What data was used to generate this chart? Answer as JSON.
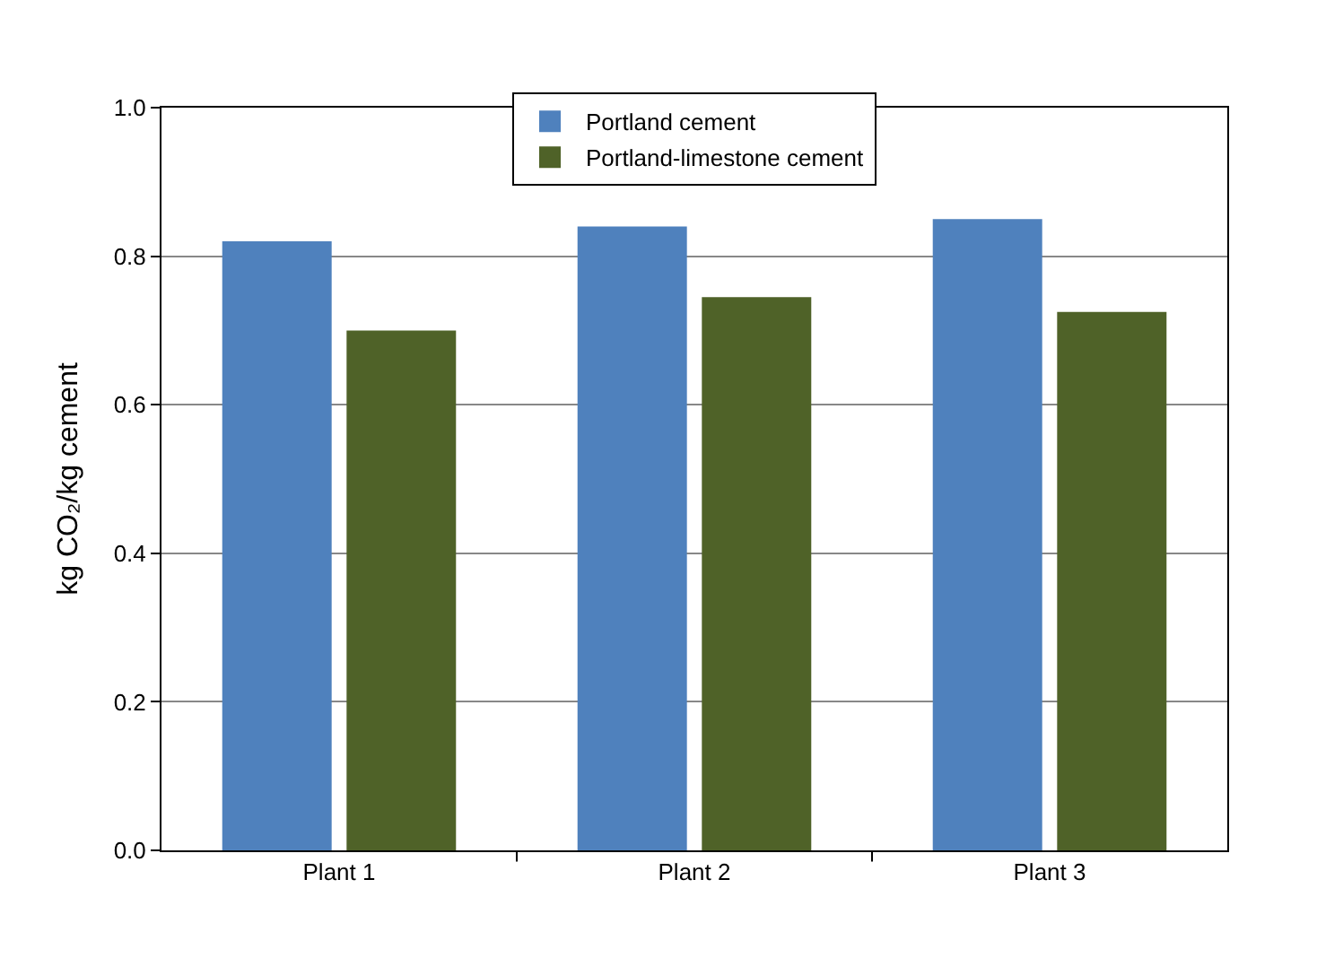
{
  "chart_data": {
    "type": "bar",
    "ylabel": "kg CO₂/kg cement",
    "categories": [
      "Plant 1",
      "Plant 2",
      "Plant 3"
    ],
    "series": [
      {
        "name": "Portland cement",
        "color": "#4f81bd",
        "values": [
          0.82,
          0.84,
          0.85
        ]
      },
      {
        "name": "Portland-limestone cement",
        "color": "#4f6228",
        "values": [
          0.7,
          0.745,
          0.725
        ]
      }
    ],
    "ylim": [
      0,
      1.0
    ],
    "yticks": [
      {
        "value": 0,
        "label": "0.0"
      },
      {
        "value": 0.2,
        "label": "0.2"
      },
      {
        "value": 0.4,
        "label": "0.4"
      },
      {
        "value": 0.6,
        "label": "0.6"
      },
      {
        "value": 0.8,
        "label": "0.8"
      },
      {
        "value": 1.0,
        "label": "1.0"
      }
    ],
    "grid": "y",
    "legend": "top"
  }
}
